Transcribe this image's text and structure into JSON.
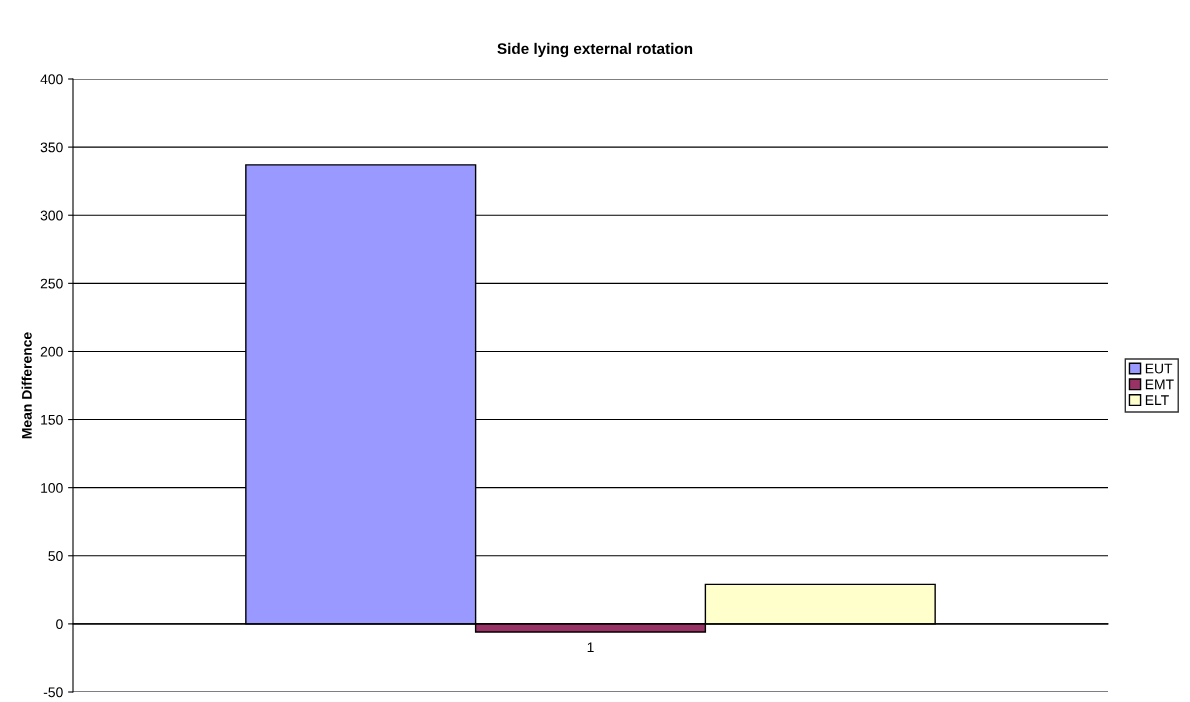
{
  "chart_data": {
    "type": "bar",
    "title": "Side lying external rotation",
    "ylabel": "Mean Difference",
    "categories": [
      "1"
    ],
    "series": [
      {
        "name": "EUT",
        "color": "#9999ff",
        "values": [
          337
        ]
      },
      {
        "name": "EMT",
        "color": "#993366",
        "values": [
          -6
        ]
      },
      {
        "name": "ELT",
        "color": "#ffffcc",
        "values": [
          29
        ]
      }
    ],
    "ylim": [
      -50,
      400
    ],
    "yticks": [
      -50,
      0,
      50,
      100,
      150,
      200,
      250,
      300,
      350,
      400
    ],
    "grid": "y",
    "legend": "right"
  }
}
